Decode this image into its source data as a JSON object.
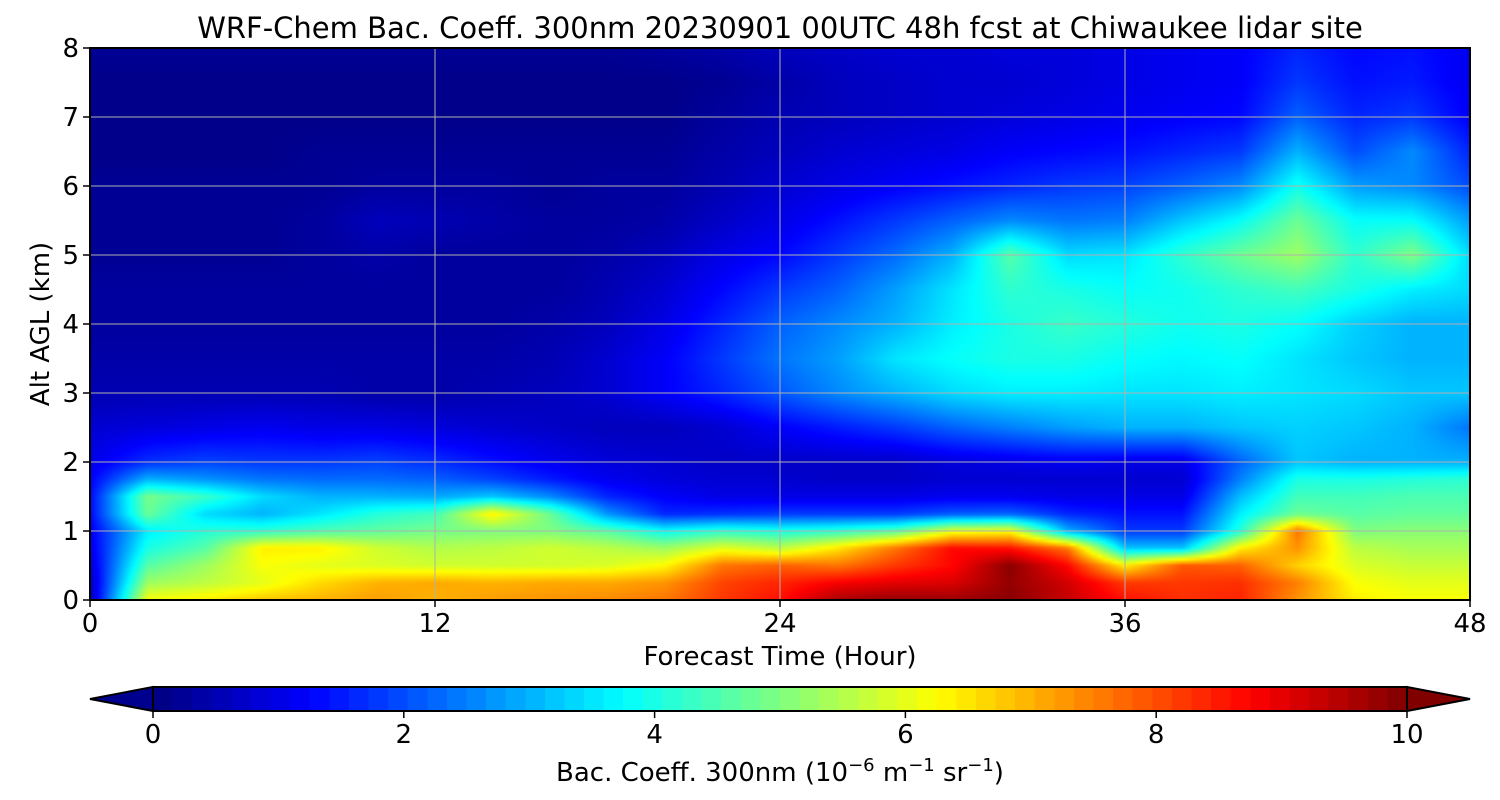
{
  "chart_data": {
    "type": "heatmap",
    "title": "WRF-Chem Bac. Coeff. 300nm  20230901 00UTC 48h fcst at Chiwaukee lidar site",
    "xlabel": "Forecast Time (Hour)",
    "ylabel": "Alt AGL (km)",
    "xlim": [
      0,
      48
    ],
    "ylim": [
      0,
      8
    ],
    "x_ticks": [
      "0",
      "12",
      "24",
      "36",
      "48"
    ],
    "y_ticks": [
      "0",
      "1",
      "2",
      "3",
      "4",
      "5",
      "6",
      "7",
      "8"
    ],
    "grid": true,
    "colormap": "jet",
    "colorbar": {
      "label_main": "Bac. Coeff. 300nm  (10",
      "exp1": "−6",
      "mid": " m",
      "exp2": "−1",
      "tail": " sr",
      "exp3": "−1",
      "close": ")",
      "range": [
        0,
        10
      ],
      "extend": "both",
      "ticks": [
        "0",
        "2",
        "4",
        "6",
        "8",
        "10"
      ]
    },
    "x": [
      0,
      2,
      4,
      6,
      8,
      10,
      12,
      14,
      16,
      18,
      20,
      22,
      24,
      26,
      28,
      30,
      32,
      34,
      36,
      38,
      40,
      42,
      44,
      46,
      48
    ],
    "y": [
      0,
      0.25,
      0.5,
      0.75,
      1,
      1.25,
      1.5,
      1.75,
      2,
      2.5,
      3,
      3.5,
      4,
      4.5,
      5,
      5.5,
      6,
      6.5,
      7,
      7.5,
      8
    ],
    "z": [
      [
        0.5,
        6.2,
        6.4,
        6.8,
        7.0,
        7.2,
        7.0,
        7.2,
        7.3,
        7.4,
        7.6,
        8.2,
        8.6,
        9.6,
        9.8,
        9.7,
        9.9,
        9.3,
        8.6,
        8.3,
        8.4,
        7.3,
        6.4,
        6.2,
        6.2
      ],
      [
        0.6,
        5.3,
        5.6,
        6.0,
        6.6,
        7.0,
        7.1,
        7.0,
        7.1,
        7.1,
        7.3,
        8.1,
        8.4,
        8.8,
        9.0,
        9.1,
        9.8,
        9.2,
        8.2,
        8.2,
        8.3,
        7.5,
        6.2,
        6.0,
        6.0
      ],
      [
        0.8,
        4.6,
        5.3,
        6.2,
        6.0,
        5.9,
        5.8,
        5.8,
        5.8,
        5.9,
        6.3,
        7.6,
        7.8,
        7.6,
        8.2,
        8.7,
        9.9,
        8.7,
        6.4,
        7.9,
        7.8,
        6.7,
        5.9,
        5.7,
        5.7
      ],
      [
        1.0,
        4.0,
        4.6,
        6.4,
        6.4,
        5.8,
        5.5,
        5.6,
        5.8,
        5.6,
        5.3,
        6.0,
        5.6,
        6.5,
        7.6,
        8.7,
        8.6,
        7.6,
        3.2,
        3.2,
        6.4,
        7.3,
        5.6,
        5.4,
        5.4
      ],
      [
        1.1,
        3.6,
        4.1,
        4.2,
        4.5,
        4.7,
        4.9,
        5.0,
        5.0,
        4.6,
        3.8,
        4.2,
        4.0,
        4.2,
        4.6,
        6.0,
        6.2,
        3.0,
        1.8,
        1.8,
        4.1,
        7.6,
        5.0,
        5.1,
        5.1
      ],
      [
        1.3,
        4.8,
        3.4,
        3.0,
        3.5,
        4.1,
        4.4,
        6.4,
        4.8,
        2.7,
        1.6,
        1.7,
        1.8,
        1.8,
        1.8,
        2.1,
        2.2,
        1.6,
        1.4,
        1.4,
        3.6,
        4.8,
        4.6,
        4.7,
        4.7
      ],
      [
        1.3,
        4.9,
        4.3,
        3.4,
        3.0,
        3.0,
        2.9,
        3.2,
        2.6,
        1.6,
        1.2,
        1.0,
        1.0,
        1.0,
        1.0,
        1.1,
        1.1,
        1.0,
        1.0,
        1.0,
        3.1,
        4.4,
        4.4,
        4.5,
        4.5
      ],
      [
        1.2,
        3.0,
        2.7,
        2.4,
        2.3,
        2.3,
        2.2,
        1.9,
        1.5,
        1.1,
        0.9,
        0.8,
        0.8,
        0.7,
        0.7,
        0.8,
        0.8,
        0.8,
        0.8,
        0.8,
        2.5,
        4.0,
        4.0,
        4.1,
        4.2
      ],
      [
        1.0,
        1.7,
        1.9,
        1.8,
        1.8,
        1.9,
        1.7,
        1.4,
        1.1,
        0.9,
        0.8,
        0.7,
        0.7,
        0.7,
        0.7,
        0.9,
        1.0,
        1.1,
        1.0,
        1.0,
        2.2,
        3.2,
        3.0,
        3.0,
        3.0
      ],
      [
        0.8,
        0.9,
        1.0,
        1.1,
        1.0,
        1.0,
        0.9,
        0.8,
        0.7,
        0.6,
        0.6,
        0.8,
        1.2,
        1.5,
        1.8,
        2.2,
        2.5,
        2.8,
        3.0,
        3.0,
        3.2,
        3.3,
        3.2,
        3.0,
        2.4
      ],
      [
        0.5,
        0.5,
        0.5,
        0.5,
        0.5,
        0.4,
        0.4,
        0.5,
        0.6,
        0.8,
        1.2,
        1.6,
        2.1,
        2.6,
        3.0,
        3.4,
        3.6,
        3.6,
        3.5,
        3.5,
        3.6,
        3.5,
        3.4,
        3.2,
        3.2
      ],
      [
        0.4,
        0.4,
        0.4,
        0.4,
        0.4,
        0.4,
        0.4,
        0.4,
        0.5,
        0.8,
        1.2,
        1.8,
        2.4,
        2.8,
        3.5,
        3.8,
        4.0,
        4.0,
        3.8,
        3.7,
        3.8,
        3.5,
        3.2,
        3.0,
        3.0
      ],
      [
        0.3,
        0.3,
        0.3,
        0.3,
        0.3,
        0.3,
        0.3,
        0.3,
        0.4,
        0.6,
        1.0,
        1.6,
        2.2,
        2.6,
        3.0,
        3.6,
        4.0,
        4.3,
        4.1,
        3.9,
        4.0,
        3.8,
        3.3,
        3.0,
        3.0
      ],
      [
        0.3,
        0.3,
        0.3,
        0.3,
        0.3,
        0.3,
        0.3,
        0.3,
        0.3,
        0.5,
        0.8,
        1.3,
        1.8,
        2.2,
        2.8,
        3.5,
        4.2,
        4.0,
        3.8,
        3.9,
        4.2,
        4.4,
        4.0,
        3.6,
        3.4
      ],
      [
        0.2,
        0.2,
        0.2,
        0.2,
        0.3,
        0.4,
        0.3,
        0.3,
        0.3,
        0.4,
        0.6,
        1.0,
        1.3,
        1.8,
        2.3,
        3.0,
        4.6,
        3.4,
        3.5,
        4.2,
        4.8,
        5.3,
        4.2,
        5.0,
        3.4
      ],
      [
        0.2,
        0.2,
        0.2,
        0.2,
        0.3,
        0.6,
        0.5,
        0.4,
        0.3,
        0.3,
        0.4,
        0.7,
        1.0,
        1.4,
        1.8,
        2.2,
        2.6,
        2.4,
        2.5,
        3.2,
        3.8,
        4.8,
        3.8,
        3.8,
        2.8
      ],
      [
        0.2,
        0.2,
        0.2,
        0.2,
        0.2,
        0.3,
        0.3,
        0.3,
        0.2,
        0.3,
        0.3,
        0.5,
        0.8,
        1.0,
        1.2,
        1.4,
        1.6,
        1.8,
        1.9,
        2.2,
        2.6,
        3.9,
        2.8,
        2.6,
        2.0
      ],
      [
        0.1,
        0.1,
        0.1,
        0.1,
        0.2,
        0.2,
        0.2,
        0.2,
        0.2,
        0.2,
        0.2,
        0.4,
        0.6,
        0.8,
        0.9,
        1.0,
        1.2,
        1.3,
        1.4,
        1.6,
        1.8,
        3.0,
        2.0,
        2.6,
        1.6
      ],
      [
        0.1,
        0.1,
        0.1,
        0.1,
        0.1,
        0.1,
        0.1,
        0.1,
        0.1,
        0.1,
        0.1,
        0.3,
        0.5,
        0.6,
        0.7,
        0.8,
        0.9,
        1.0,
        1.1,
        1.2,
        1.3,
        2.2,
        1.6,
        1.8,
        1.2
      ],
      [
        0.1,
        0.1,
        0.1,
        0.1,
        0.1,
        0.1,
        0.1,
        0.1,
        0.1,
        0.1,
        0.1,
        0.2,
        0.4,
        0.6,
        0.7,
        0.8,
        0.8,
        0.9,
        1.0,
        1.1,
        1.2,
        1.8,
        1.4,
        1.5,
        1.1
      ],
      [
        0.2,
        0.2,
        0.2,
        0.2,
        0.2,
        0.2,
        0.2,
        0.2,
        0.2,
        0.2,
        0.3,
        0.4,
        0.6,
        0.7,
        0.8,
        0.8,
        0.9,
        0.9,
        1.0,
        1.1,
        1.2,
        1.6,
        1.3,
        1.4,
        1.1
      ]
    ]
  }
}
